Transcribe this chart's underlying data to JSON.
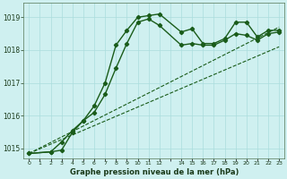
{
  "bg_color": "#cff0f0",
  "grid_color": "#aadddd",
  "line_color": "#1a5c1a",
  "title": "Graphe pression niveau de la mer (hPa)",
  "xlim": [
    -0.5,
    23.5
  ],
  "ylim": [
    1014.7,
    1019.45
  ],
  "yticks": [
    1015,
    1016,
    1017,
    1018,
    1019
  ],
  "xtick_positions": [
    0,
    1,
    2,
    3,
    4,
    5,
    6,
    7,
    8,
    9,
    10,
    11,
    12,
    13,
    14,
    15,
    16,
    17,
    18,
    19,
    20,
    21,
    22,
    23
  ],
  "xtick_labels": [
    "0",
    "1",
    "2",
    "3",
    "4",
    "5",
    "6",
    "7",
    "8",
    "9",
    "10",
    "11",
    "12",
    "",
    "14",
    "15",
    "16",
    "17",
    "18",
    "19",
    "20",
    "21",
    "22",
    "23"
  ],
  "series": [
    {
      "x": [
        0,
        2,
        3,
        4,
        5,
        6,
        7,
        8,
        9,
        10,
        11,
        12,
        14,
        15,
        16,
        17,
        18,
        19,
        20,
        21,
        22,
        23
      ],
      "y": [
        1014.85,
        1014.9,
        1014.95,
        1015.5,
        1015.85,
        1016.3,
        1017.0,
        1018.15,
        1018.6,
        1019.0,
        1019.05,
        1019.1,
        1018.55,
        1018.65,
        1018.2,
        1018.2,
        1018.35,
        1018.85,
        1018.85,
        1018.4,
        1018.6,
        1018.6
      ],
      "marker": "D",
      "markersize": 2.2,
      "linewidth": 1.0,
      "linestyle": "-"
    },
    {
      "x": [
        0,
        2,
        3,
        4,
        5,
        6,
        7,
        8,
        9,
        10,
        11,
        12,
        14,
        15,
        16,
        17,
        18,
        19,
        20,
        21,
        22,
        23
      ],
      "y": [
        1014.85,
        1014.9,
        1015.2,
        1015.55,
        1015.85,
        1016.1,
        1016.65,
        1017.45,
        1018.2,
        1018.85,
        1018.95,
        1018.75,
        1018.15,
        1018.2,
        1018.15,
        1018.15,
        1018.3,
        1018.5,
        1018.45,
        1018.3,
        1018.5,
        1018.55
      ],
      "marker": "D",
      "markersize": 2.2,
      "linewidth": 1.0,
      "linestyle": "-"
    },
    {
      "x": [
        0,
        23
      ],
      "y": [
        1014.85,
        1018.7
      ],
      "marker": null,
      "markersize": 0,
      "linewidth": 0.8,
      "linestyle": "--"
    },
    {
      "x": [
        0,
        23
      ],
      "y": [
        1014.85,
        1018.1
      ],
      "marker": null,
      "markersize": 0,
      "linewidth": 0.8,
      "linestyle": "--"
    }
  ]
}
